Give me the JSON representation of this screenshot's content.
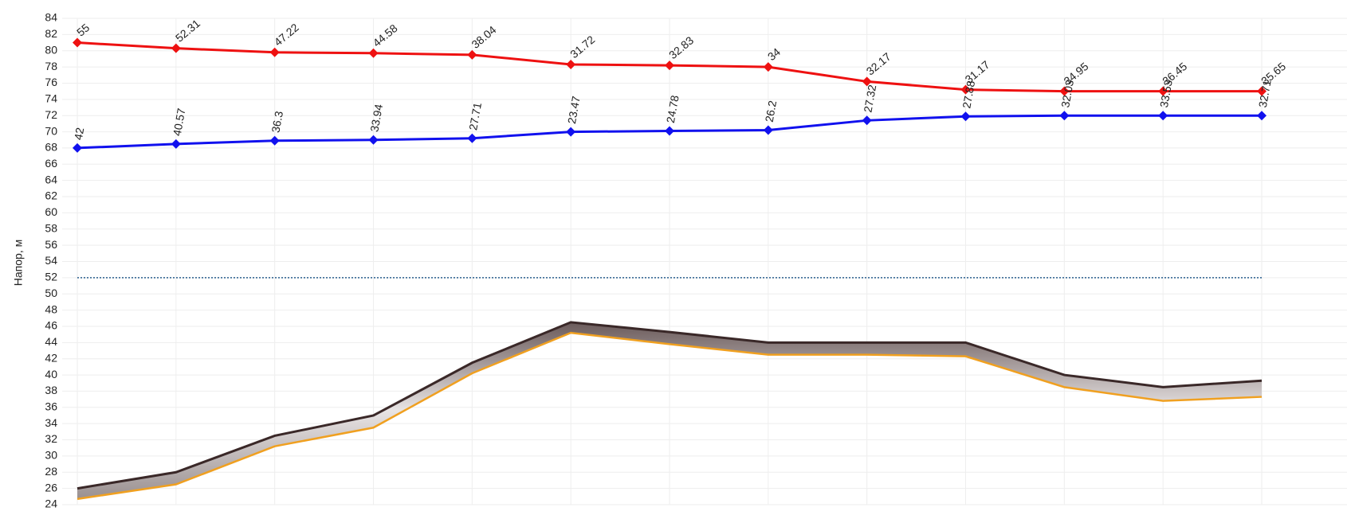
{
  "chart_data": {
    "type": "line",
    "y_label": "Напор, м",
    "ylim": [
      24,
      84
    ],
    "yticks": [
      24,
      26,
      28,
      30,
      32,
      34,
      36,
      38,
      40,
      42,
      44,
      46,
      48,
      50,
      52,
      54,
      56,
      58,
      60,
      62,
      64,
      66,
      68,
      70,
      72,
      74,
      76,
      78,
      80,
      82,
      84
    ],
    "grid": true,
    "reference_line": {
      "value": 52,
      "color": "#2a5f8f"
    },
    "series": [
      {
        "color": "#ee1111",
        "values": [
          81,
          80.3,
          79.8,
          79.7,
          79.5,
          78.3,
          78.2,
          78,
          76.2,
          75.2,
          75,
          75,
          75
        ],
        "labels": [
          "55",
          "52.31",
          "47.22",
          "44.58",
          "38.04",
          "31.72",
          "32.83",
          "34",
          "32.17",
          "31.17",
          "34.95",
          "36.45",
          "35.65"
        ]
      },
      {
        "color": "#1111ee",
        "values": [
          68,
          68.5,
          68.9,
          69,
          69.2,
          70,
          70.1,
          70.2,
          71.4,
          71.9,
          72,
          72,
          72
        ],
        "labels": [
          "42",
          "40.57",
          "36.3",
          "33.94",
          "27.71",
          "23.47",
          "24.78",
          "26.2",
          "27.32",
          "27.88",
          "32.03",
          "33.53",
          "32.71"
        ]
      }
    ],
    "ground": {
      "top_color": "#3a2828",
      "bottom_color": "#f0a020",
      "top": [
        26,
        28,
        32.5,
        35,
        41.5,
        46.5,
        45.3,
        44,
        44,
        44,
        40,
        38.5,
        39.3
      ],
      "bottom": [
        24.7,
        26.5,
        31.2,
        33.5,
        40.2,
        45.2,
        43.8,
        42.5,
        42.5,
        42.3,
        38.5,
        36.8,
        37.3
      ]
    }
  }
}
